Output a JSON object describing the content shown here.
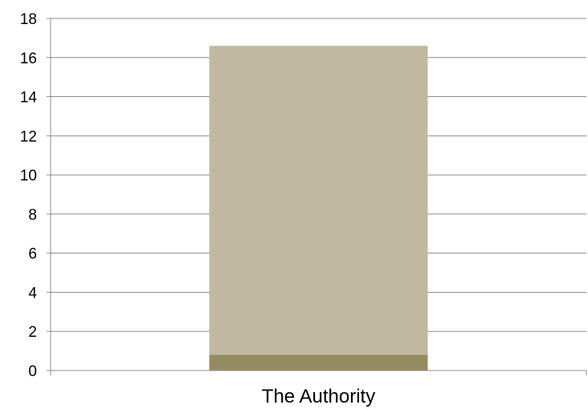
{
  "chart_data": {
    "type": "bar",
    "stacked": true,
    "title": "",
    "xlabel": "",
    "ylabel": "",
    "categories": [
      "The Authority"
    ],
    "series": [
      {
        "values": [
          0.8
        ],
        "color": "#948b60"
      },
      {
        "values": [
          15.8
        ],
        "color": "#c0b9a0"
      }
    ],
    "ylim": [
      0,
      18
    ],
    "yticks": [
      0,
      2,
      4,
      6,
      8,
      10,
      12,
      14,
      16,
      18
    ],
    "grid": true,
    "legend": "none",
    "colors": {
      "gridline": "#8c8c8c",
      "axis": "#8c8c8c",
      "text": "#000000"
    }
  }
}
